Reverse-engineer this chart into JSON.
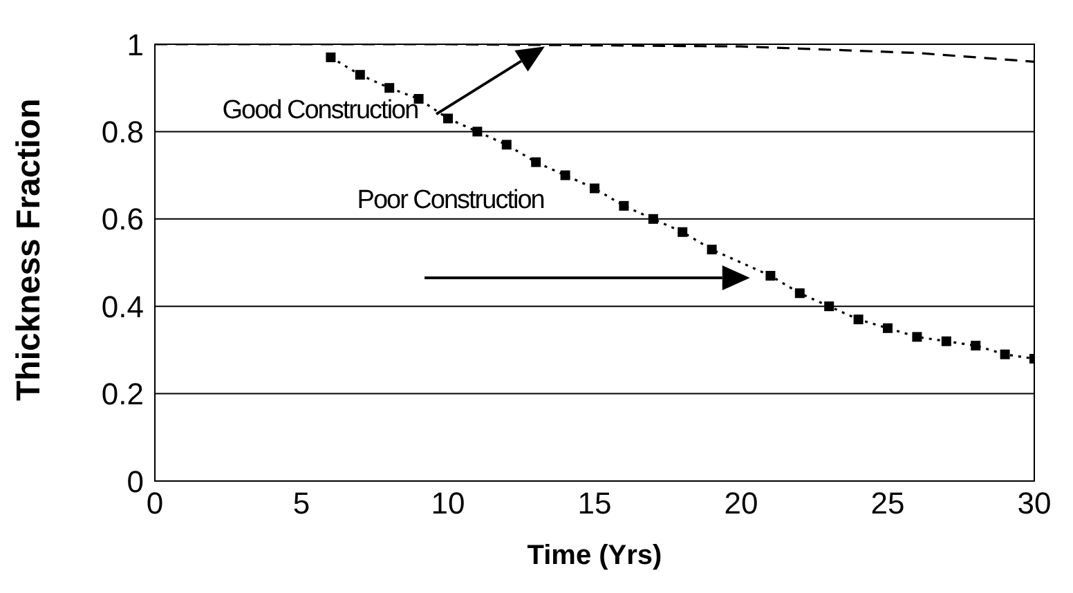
{
  "chart_data": {
    "type": "line",
    "xlabel": "Time (Yrs)",
    "ylabel": "Thickness Fraction",
    "xlim": [
      0,
      30
    ],
    "ylim": [
      0,
      1
    ],
    "xticks": [
      0,
      5,
      10,
      15,
      20,
      25,
      30
    ],
    "yticks": [
      0,
      0.2,
      0.4,
      0.6,
      0.8,
      1
    ],
    "grid": "y",
    "series": [
      {
        "name": "Good Construction",
        "color": "#000000",
        "line_style": "dashed",
        "marker": "none",
        "x": [
          0,
          10,
          20,
          22,
          24,
          26,
          28,
          30
        ],
        "values": [
          1,
          1,
          0.995,
          0.99,
          0.985,
          0.98,
          0.97,
          0.96
        ]
      },
      {
        "name": "Poor Construction",
        "color": "#000000",
        "line_style": "dotted",
        "marker": "square",
        "x": [
          6,
          7,
          8,
          9,
          10,
          11,
          12,
          13,
          14,
          15,
          16,
          17,
          18,
          19,
          20,
          21,
          22,
          23,
          24,
          25,
          26,
          27,
          28,
          29,
          30
        ],
        "values": [
          0.97,
          0.93,
          0.9,
          0.875,
          0.83,
          0.8,
          0.77,
          0.73,
          0.7,
          0.67,
          0.63,
          0.6,
          0.57,
          0.53,
          null,
          0.47,
          0.43,
          0.4,
          0.37,
          0.35,
          0.33,
          0.32,
          0.31,
          0.29,
          0.28
        ]
      }
    ]
  }
}
